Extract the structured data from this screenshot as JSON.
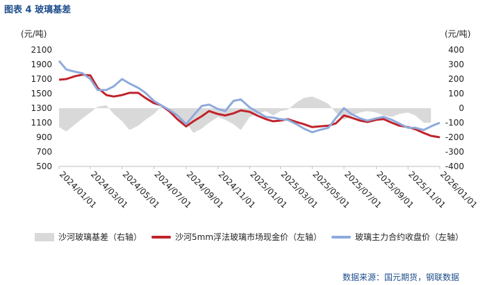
{
  "title": "图表  4  玻璃基差",
  "source": "数据来源：国元期货，钢联数据",
  "colors": {
    "basis": "#d9d9d9",
    "spot": "#c0232c",
    "futures": "#8eaadb"
  },
  "chart_data": {
    "type": "line",
    "x_tick_labels": [
      "2024/01/01",
      "2024/03/01",
      "2024/05/01",
      "2024/07/01",
      "2024/09/01",
      "2024/11/01",
      "2025/01/01",
      "2025/03/01",
      "2025/05/01",
      "2025/07/01",
      "2025/09/01",
      "2025/11/01",
      "2026/01/01"
    ],
    "x_range": [
      "2024/01/01",
      "2026/01/01"
    ],
    "y_left": {
      "unit": "(元/吨)",
      "range": [
        500,
        2100
      ],
      "ticks": [
        500,
        700,
        900,
        1100,
        1300,
        1500,
        1700,
        1900,
        2100
      ]
    },
    "y_right": {
      "unit": "(元/吨)",
      "range": [
        -400,
        400
      ],
      "ticks": [
        -400,
        -300,
        -200,
        -100,
        0,
        100,
        200,
        300,
        400
      ]
    },
    "legend_position": "bottom",
    "series": [
      {
        "name": "沙河玻璃基差（右轴）",
        "type": "area",
        "axis": "right",
        "color": "#d9d9d9",
        "points": [
          [
            "2024/01/01",
            -130
          ],
          [
            "2024/01/15",
            -160
          ],
          [
            "2024/02/01",
            -110
          ],
          [
            "2024/02/15",
            -70
          ],
          [
            "2024/03/01",
            -30
          ],
          [
            "2024/03/15",
            10
          ],
          [
            "2024/04/01",
            20
          ],
          [
            "2024/04/15",
            -40
          ],
          [
            "2024/05/01",
            -90
          ],
          [
            "2024/05/15",
            -150
          ],
          [
            "2024/06/01",
            -120
          ],
          [
            "2024/06/15",
            -80
          ],
          [
            "2024/07/01",
            -40
          ],
          [
            "2024/07/15",
            10
          ],
          [
            "2024/08/01",
            -20
          ],
          [
            "2024/08/15",
            -60
          ],
          [
            "2024/09/01",
            -100
          ],
          [
            "2024/09/15",
            -170
          ],
          [
            "2024/10/01",
            -140
          ],
          [
            "2024/10/15",
            -100
          ],
          [
            "2024/11/01",
            -60
          ],
          [
            "2024/11/15",
            -80
          ],
          [
            "2024/12/01",
            -110
          ],
          [
            "2024/12/15",
            -150
          ],
          [
            "2025/01/01",
            -60
          ],
          [
            "2025/01/15",
            -40
          ],
          [
            "2025/02/01",
            -20
          ],
          [
            "2025/02/15",
            -50
          ],
          [
            "2025/03/01",
            -20
          ],
          [
            "2025/03/15",
            -10
          ],
          [
            "2025/04/01",
            40
          ],
          [
            "2025/04/15",
            70
          ],
          [
            "2025/05/01",
            80
          ],
          [
            "2025/05/15",
            60
          ],
          [
            "2025/06/01",
            30
          ],
          [
            "2025/06/15",
            -30
          ],
          [
            "2025/07/01",
            -80
          ],
          [
            "2025/07/15",
            -50
          ],
          [
            "2025/08/01",
            -30
          ],
          [
            "2025/08/15",
            -20
          ],
          [
            "2025/09/01",
            -30
          ],
          [
            "2025/09/15",
            -50
          ],
          [
            "2025/10/01",
            -60
          ],
          [
            "2025/10/15",
            -40
          ],
          [
            "2025/11/01",
            -30
          ],
          [
            "2025/11/15",
            -50
          ],
          [
            "2025/12/01",
            -100
          ],
          [
            "2025/12/15",
            -100
          ]
        ]
      },
      {
        "name": "沙河5mm浮法玻璃市场现金价（左轴）",
        "type": "line",
        "axis": "left",
        "color": "#c0232c",
        "points": [
          [
            "2024/01/01",
            1690
          ],
          [
            "2024/01/15",
            1700
          ],
          [
            "2024/02/01",
            1740
          ],
          [
            "2024/02/15",
            1760
          ],
          [
            "2024/03/01",
            1750
          ],
          [
            "2024/03/15",
            1580
          ],
          [
            "2024/04/01",
            1480
          ],
          [
            "2024/04/15",
            1460
          ],
          [
            "2024/05/01",
            1480
          ],
          [
            "2024/05/15",
            1510
          ],
          [
            "2024/06/01",
            1510
          ],
          [
            "2024/06/15",
            1440
          ],
          [
            "2024/07/01",
            1370
          ],
          [
            "2024/07/15",
            1340
          ],
          [
            "2024/08/01",
            1250
          ],
          [
            "2024/08/15",
            1150
          ],
          [
            "2024/09/01",
            1050
          ],
          [
            "2024/09/15",
            1120
          ],
          [
            "2024/10/01",
            1190
          ],
          [
            "2024/10/15",
            1260
          ],
          [
            "2024/11/01",
            1220
          ],
          [
            "2024/11/15",
            1200
          ],
          [
            "2024/12/01",
            1230
          ],
          [
            "2024/12/15",
            1270
          ],
          [
            "2025/01/01",
            1250
          ],
          [
            "2025/01/15",
            1200
          ],
          [
            "2025/02/01",
            1150
          ],
          [
            "2025/02/15",
            1120
          ],
          [
            "2025/03/01",
            1130
          ],
          [
            "2025/03/15",
            1150
          ],
          [
            "2025/04/01",
            1110
          ],
          [
            "2025/04/15",
            1080
          ],
          [
            "2025/05/01",
            1040
          ],
          [
            "2025/05/15",
            1050
          ],
          [
            "2025/06/01",
            1060
          ],
          [
            "2025/06/15",
            1090
          ],
          [
            "2025/07/01",
            1200
          ],
          [
            "2025/07/15",
            1170
          ],
          [
            "2025/08/01",
            1130
          ],
          [
            "2025/08/15",
            1110
          ],
          [
            "2025/09/01",
            1140
          ],
          [
            "2025/09/15",
            1150
          ],
          [
            "2025/10/01",
            1100
          ],
          [
            "2025/10/15",
            1060
          ],
          [
            "2025/11/01",
            1040
          ],
          [
            "2025/11/15",
            1010
          ],
          [
            "2025/12/01",
            960
          ],
          [
            "2025/12/15",
            920
          ],
          [
            "2026/01/01",
            900
          ]
        ]
      },
      {
        "name": "玻璃主力合约收盘价（左轴）",
        "type": "line",
        "axis": "left",
        "color": "#8eaadb",
        "points": [
          [
            "2024/01/01",
            1950
          ],
          [
            "2024/01/15",
            1830
          ],
          [
            "2024/02/01",
            1800
          ],
          [
            "2024/02/15",
            1780
          ],
          [
            "2024/03/01",
            1700
          ],
          [
            "2024/03/15",
            1550
          ],
          [
            "2024/04/01",
            1550
          ],
          [
            "2024/04/15",
            1600
          ],
          [
            "2024/05/01",
            1700
          ],
          [
            "2024/05/15",
            1640
          ],
          [
            "2024/06/01",
            1580
          ],
          [
            "2024/06/15",
            1510
          ],
          [
            "2024/07/01",
            1400
          ],
          [
            "2024/07/15",
            1340
          ],
          [
            "2024/08/01",
            1270
          ],
          [
            "2024/08/15",
            1200
          ],
          [
            "2024/09/01",
            1080
          ],
          [
            "2024/09/15",
            1200
          ],
          [
            "2024/10/01",
            1330
          ],
          [
            "2024/10/15",
            1350
          ],
          [
            "2024/11/01",
            1290
          ],
          [
            "2024/11/15",
            1260
          ],
          [
            "2024/12/01",
            1400
          ],
          [
            "2024/12/15",
            1420
          ],
          [
            "2025/01/01",
            1310
          ],
          [
            "2025/01/15",
            1250
          ],
          [
            "2025/02/01",
            1180
          ],
          [
            "2025/02/15",
            1170
          ],
          [
            "2025/03/01",
            1150
          ],
          [
            "2025/03/15",
            1140
          ],
          [
            "2025/04/01",
            1080
          ],
          [
            "2025/04/15",
            1020
          ],
          [
            "2025/05/01",
            970
          ],
          [
            "2025/05/15",
            1000
          ],
          [
            "2025/06/01",
            1030
          ],
          [
            "2025/06/15",
            1160
          ],
          [
            "2025/07/01",
            1300
          ],
          [
            "2025/07/15",
            1220
          ],
          [
            "2025/08/01",
            1160
          ],
          [
            "2025/08/15",
            1130
          ],
          [
            "2025/09/01",
            1160
          ],
          [
            "2025/09/15",
            1180
          ],
          [
            "2025/10/01",
            1140
          ],
          [
            "2025/10/15",
            1090
          ],
          [
            "2025/11/01",
            1030
          ],
          [
            "2025/11/15",
            1030
          ],
          [
            "2025/12/01",
            1000
          ],
          [
            "2025/12/15",
            1050
          ],
          [
            "2026/01/01",
            1100
          ]
        ]
      }
    ]
  }
}
